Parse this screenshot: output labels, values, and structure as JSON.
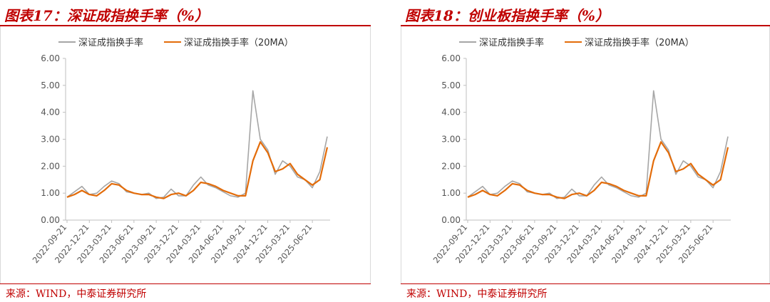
{
  "panels": [
    {
      "title": "图表17：深证成指换手率（%）",
      "source": "来源：WIND，中泰证券研究所",
      "chart_data": {
        "type": "line",
        "legend_position": "top",
        "legend": [
          "深证成指换手率",
          "深证成指换手率（20MA）"
        ],
        "ylim": [
          0,
          6
        ],
        "yticks": [
          "0.00",
          "1.00",
          "2.00",
          "3.00",
          "4.00",
          "5.00",
          "6.00"
        ],
        "xtick_labels": [
          "2022-09-21",
          "2022-12-21",
          "2023-03-21",
          "2023-06-21",
          "2023-09-21",
          "2023-12-21",
          "2024-03-21",
          "2024-06-21",
          "2024-09-21",
          "2024-12-21",
          "2025-03-21",
          "2025-06-21"
        ],
        "x": [
          "2022-09",
          "2022-10",
          "2022-11",
          "2022-12",
          "2023-01",
          "2023-02",
          "2023-03",
          "2023-04",
          "2023-05",
          "2023-06",
          "2023-07",
          "2023-08",
          "2023-09",
          "2023-10",
          "2023-11",
          "2023-12",
          "2024-01",
          "2024-02",
          "2024-03",
          "2024-04",
          "2024-05",
          "2024-06",
          "2024-07",
          "2024-08",
          "2024-09",
          "2024-10",
          "2024-11",
          "2024-12",
          "2025-01",
          "2025-02",
          "2025-03",
          "2025-04",
          "2025-05",
          "2025-06",
          "2025-07",
          "2025-08"
        ],
        "series": [
          {
            "name": "深证成指换手率",
            "color": "#a6a6a6",
            "values": [
              0.85,
              1.05,
              1.25,
              0.95,
              1.0,
              1.25,
              1.45,
              1.35,
              1.05,
              1.0,
              0.95,
              1.0,
              0.8,
              0.85,
              1.15,
              0.9,
              0.9,
              1.3,
              1.6,
              1.3,
              1.2,
              1.05,
              0.9,
              0.85,
              1.0,
              4.8,
              3.0,
              2.6,
              1.7,
              2.2,
              2.0,
              1.6,
              1.5,
              1.2,
              1.8,
              3.1
            ]
          },
          {
            "name": "深证成指换手率（20MA）",
            "color": "#e36c0a",
            "values": [
              0.85,
              0.95,
              1.1,
              0.95,
              0.9,
              1.1,
              1.35,
              1.3,
              1.1,
              1.0,
              0.95,
              0.95,
              0.85,
              0.8,
              0.95,
              1.0,
              0.9,
              1.1,
              1.4,
              1.35,
              1.25,
              1.1,
              1.0,
              0.9,
              0.9,
              2.2,
              2.9,
              2.5,
              1.8,
              1.9,
              2.1,
              1.7,
              1.5,
              1.3,
              1.5,
              2.7
            ]
          }
        ]
      }
    },
    {
      "title": "图表18：创业板指换手率（%）",
      "source": "来源：WIND，中泰证券研究所",
      "chart_data": {
        "type": "line",
        "legend_position": "top",
        "legend": [
          "深证成指换手率",
          "深证成指换手率（20MA）"
        ],
        "ylim": [
          0,
          6
        ],
        "yticks": [
          "0.00",
          "1.00",
          "2.00",
          "3.00",
          "4.00",
          "5.00",
          "6.00"
        ],
        "xtick_labels": [
          "2022-09-21",
          "2022-12-21",
          "2023-03-21",
          "2023-06-21",
          "2023-09-21",
          "2023-12-21",
          "2024-03-21",
          "2024-06-21",
          "2024-09-21",
          "2024-12-21",
          "2025-03-21",
          "2025-06-21"
        ],
        "x": [
          "2022-09",
          "2022-10",
          "2022-11",
          "2022-12",
          "2023-01",
          "2023-02",
          "2023-03",
          "2023-04",
          "2023-05",
          "2023-06",
          "2023-07",
          "2023-08",
          "2023-09",
          "2023-10",
          "2023-11",
          "2023-12",
          "2024-01",
          "2024-02",
          "2024-03",
          "2024-04",
          "2024-05",
          "2024-06",
          "2024-07",
          "2024-08",
          "2024-09",
          "2024-10",
          "2024-11",
          "2024-12",
          "2025-01",
          "2025-02",
          "2025-03",
          "2025-04",
          "2025-05",
          "2025-06",
          "2025-07",
          "2025-08"
        ],
        "series": [
          {
            "name": "深证成指换手率",
            "color": "#a6a6a6",
            "values": [
              0.85,
              1.05,
              1.25,
              0.95,
              1.0,
              1.25,
              1.45,
              1.35,
              1.05,
              1.0,
              0.95,
              1.0,
              0.8,
              0.85,
              1.15,
              0.9,
              0.9,
              1.3,
              1.6,
              1.3,
              1.2,
              1.05,
              0.9,
              0.85,
              1.0,
              4.8,
              3.0,
              2.6,
              1.7,
              2.2,
              2.0,
              1.6,
              1.5,
              1.2,
              1.8,
              3.1
            ]
          },
          {
            "name": "深证成指换手率（20MA）",
            "color": "#e36c0a",
            "values": [
              0.85,
              0.95,
              1.1,
              0.95,
              0.9,
              1.1,
              1.35,
              1.3,
              1.1,
              1.0,
              0.95,
              0.95,
              0.85,
              0.8,
              0.95,
              1.0,
              0.9,
              1.1,
              1.4,
              1.35,
              1.25,
              1.1,
              1.0,
              0.9,
              0.9,
              2.2,
              2.9,
              2.5,
              1.8,
              1.9,
              2.1,
              1.7,
              1.5,
              1.3,
              1.5,
              2.7
            ]
          }
        ]
      }
    }
  ]
}
